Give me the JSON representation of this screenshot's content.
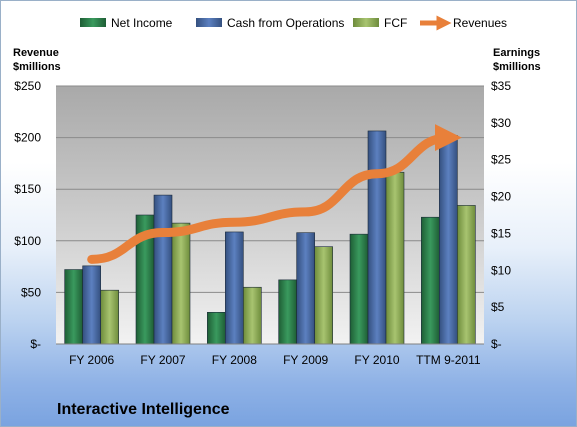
{
  "chart_data": {
    "type": "bar",
    "title": "Interactive Intelligence",
    "categories": [
      "FY 2006",
      "FY 2007",
      "FY 2008",
      "FY 2009",
      "FY 2010",
      "TTM 9-2011"
    ],
    "y_left": {
      "label_line1": "Revenue",
      "label_line2": "$millions",
      "ticks": [
        "$-",
        "$50",
        "$100",
        "$150",
        "$200",
        "$250"
      ],
      "ylim": [
        0,
        250
      ]
    },
    "y_right": {
      "label_line1": "Earnings",
      "label_line2": "$millions",
      "ticks": [
        "$-",
        "$5",
        "$10",
        "$15",
        "$20",
        "$25",
        "$30",
        "$35"
      ],
      "ylim": [
        0,
        35
      ]
    },
    "series": [
      {
        "name": "Net Income",
        "axis": "right",
        "color": "#2e7d4a",
        "values": [
          10.1,
          17.5,
          4.3,
          8.7,
          14.9,
          17.2
        ]
      },
      {
        "name": "Cash from Operations",
        "axis": "right",
        "color": "#4a6aa6",
        "values": [
          10.6,
          20.2,
          15.2,
          15.1,
          28.9,
          28.3
        ]
      },
      {
        "name": "FCF",
        "axis": "right",
        "color": "#8fad5a",
        "values": [
          7.3,
          16.4,
          7.7,
          13.2,
          23.3,
          18.8
        ]
      }
    ],
    "line": {
      "name": "Revenues",
      "axis": "left",
      "color": "#e8803a",
      "values": [
        82,
        108,
        118,
        128,
        165,
        200
      ]
    },
    "legend": "top"
  }
}
